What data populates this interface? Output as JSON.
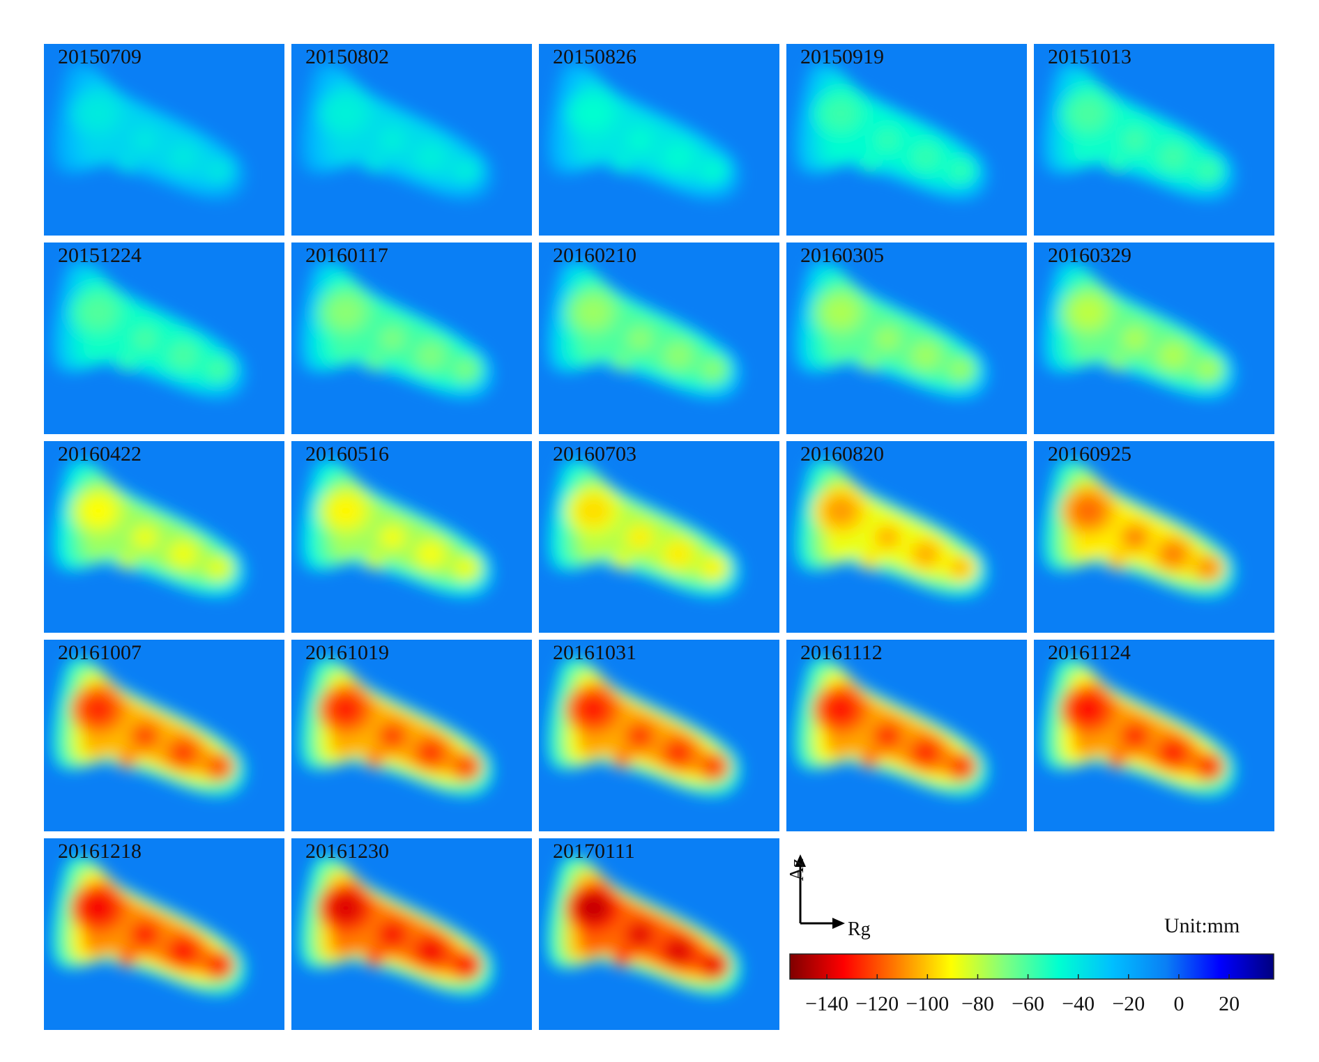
{
  "figure": {
    "unit_label": "Unit:mm",
    "axis_azimuth": "Az",
    "axis_range": "Rg"
  },
  "panels": [
    {
      "date": "20150709",
      "level": 0.26
    },
    {
      "date": "20150802",
      "level": 0.28
    },
    {
      "date": "20150826",
      "level": 0.31
    },
    {
      "date": "20150919",
      "level": 0.38
    },
    {
      "date": "20151013",
      "level": 0.4
    },
    {
      "date": "20151224",
      "level": 0.41
    },
    {
      "date": "20160117",
      "level": 0.48
    },
    {
      "date": "20160210",
      "level": 0.5
    },
    {
      "date": "20160305",
      "level": 0.52
    },
    {
      "date": "20160329",
      "level": 0.54
    },
    {
      "date": "20160422",
      "level": 0.62
    },
    {
      "date": "20160516",
      "level": 0.63
    },
    {
      "date": "20160703",
      "level": 0.66
    },
    {
      "date": "20160820",
      "level": 0.74
    },
    {
      "date": "20160925",
      "level": 0.8
    },
    {
      "date": "20161007",
      "level": 0.88
    },
    {
      "date": "20161019",
      "level": 0.89
    },
    {
      "date": "20161031",
      "level": 0.9
    },
    {
      "date": "20161112",
      "level": 0.91
    },
    {
      "date": "20161124",
      "level": 0.92
    },
    {
      "date": "20161218",
      "level": 0.94
    },
    {
      "date": "20161230",
      "level": 0.97
    },
    {
      "date": "20170111",
      "level": 1.0
    }
  ],
  "colorbar": {
    "min": -155,
    "max": 38,
    "ticks": [
      {
        "value": -140,
        "label": "−140"
      },
      {
        "value": -120,
        "label": "−120"
      },
      {
        "value": -100,
        "label": "−100"
      },
      {
        "value": -80,
        "label": "−80"
      },
      {
        "value": -60,
        "label": "−60"
      },
      {
        "value": -40,
        "label": "−40"
      },
      {
        "value": -20,
        "label": "−20"
      },
      {
        "value": 0,
        "label": "0"
      },
      {
        "value": 20,
        "label": "20"
      }
    ],
    "colors": {
      "background": "#0a7ff5",
      "scale": [
        "#7f0000",
        "#ff0000",
        "#ff7f00",
        "#ffff00",
        "#7fff7f",
        "#00ffd0",
        "#00bfff",
        "#0a7ff5",
        "#0000ff",
        "#00007f"
      ]
    }
  }
}
